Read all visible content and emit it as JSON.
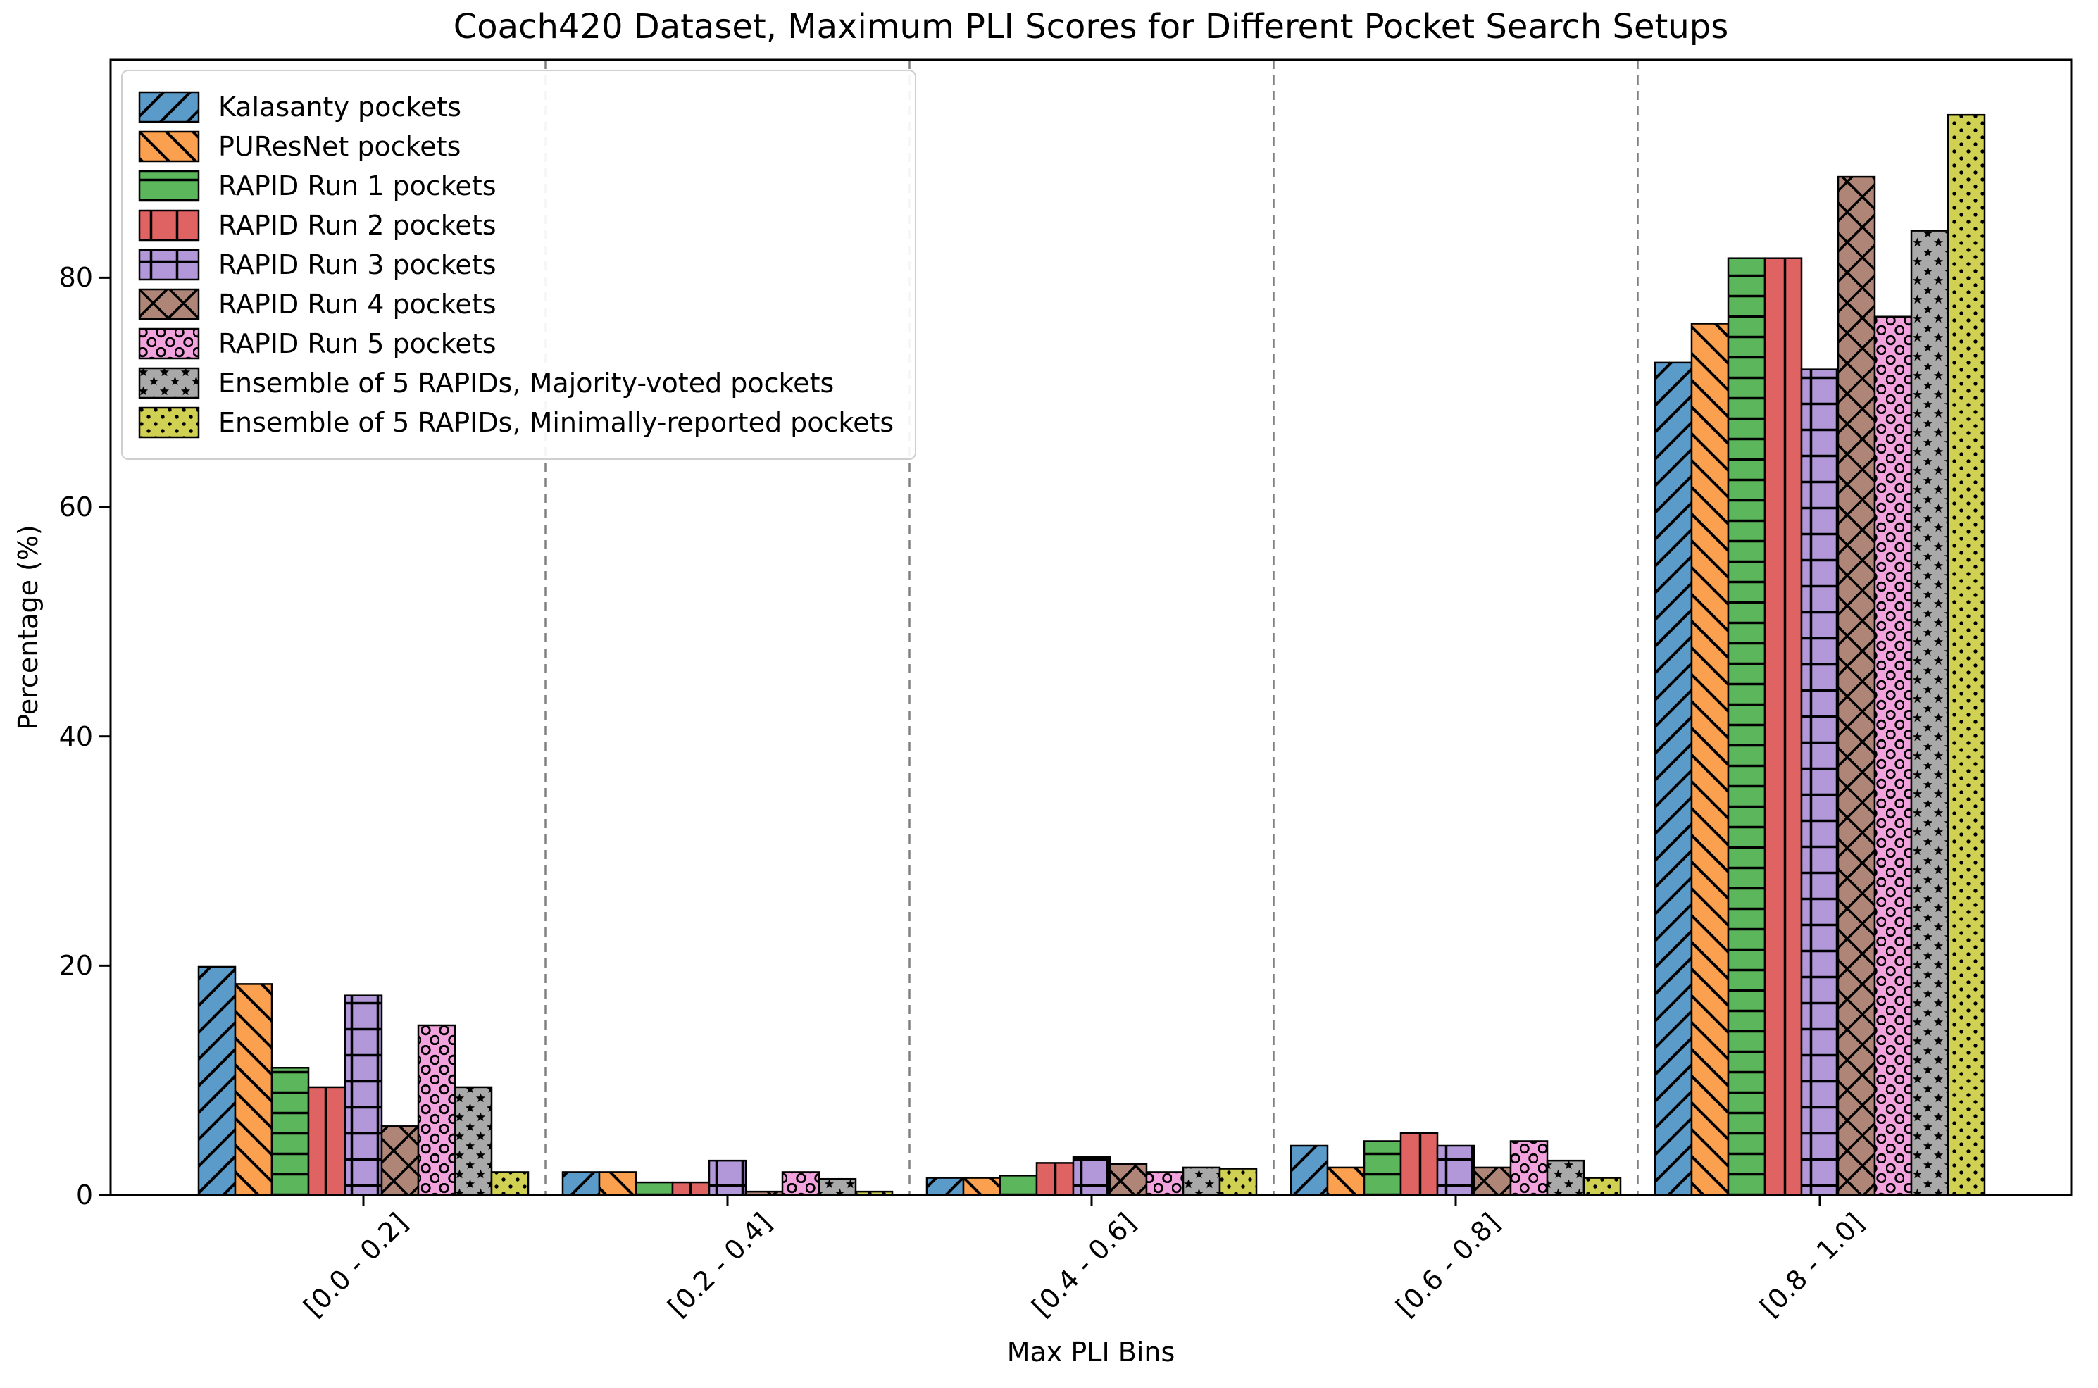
{
  "title": "Coach420 Dataset, Maximum PLI Scores for Different Pocket Search Setups",
  "chart_data": {
    "type": "bar",
    "title": "Coach420 Dataset, Maximum PLI Scores for Different Pocket Search Setups",
    "xlabel": "Max PLI Bins",
    "ylabel": "Percentage (%)",
    "ylim": [
      0,
      99
    ],
    "yticks": [
      "0",
      "20",
      "40",
      "60",
      "80"
    ],
    "ytick_values": [
      0,
      20,
      40,
      60,
      80
    ],
    "categories": [
      "[0.0 - 0.2]",
      "[0.2 - 0.4]",
      "[0.4 - 0.6]",
      "[0.6 - 0.8]",
      "[0.8 - 1.0]"
    ],
    "grid": "dashed vertical separator lines between category groups",
    "legend_position": "upper left",
    "separator_color": "#808080",
    "axis_color": "#000000",
    "series": [
      {
        "name": "Kalasanty pockets",
        "color": "#5B9BC9",
        "hatch": "/",
        "values": [
          19.9,
          2.0,
          1.5,
          4.3,
          72.6
        ]
      },
      {
        "name": "PUResNet pockets",
        "color": "#FBA04E",
        "hatch": "\\",
        "values": [
          18.4,
          2.0,
          1.5,
          2.4,
          76.0
        ]
      },
      {
        "name": "RAPID Run 1 pockets",
        "color": "#5CB75C",
        "hatch": "-",
        "values": [
          11.1,
          1.1,
          1.7,
          4.7,
          81.7
        ]
      },
      {
        "name": "RAPID Run 2 pockets",
        "color": "#E06363",
        "hatch": "|",
        "values": [
          9.4,
          1.1,
          2.8,
          5.4,
          81.7
        ]
      },
      {
        "name": "RAPID Run 3 pockets",
        "color": "#B298D8",
        "hatch": "+",
        "values": [
          17.4,
          3.0,
          3.3,
          4.3,
          72.0
        ]
      },
      {
        "name": "RAPID Run 4 pockets",
        "color": "#AE8577",
        "hatch": "x",
        "values": [
          6.0,
          0.3,
          2.7,
          2.4,
          88.8
        ]
      },
      {
        "name": "RAPID Run 5 pockets",
        "color": "#F2A2DC",
        "hatch": "o",
        "values": [
          14.8,
          2.0,
          2.0,
          4.7,
          76.6
        ]
      },
      {
        "name": "Ensemble of 5 RAPIDs, Majority-voted pockets",
        "color": "#A9A9A9",
        "hatch": "*",
        "values": [
          9.4,
          1.4,
          2.4,
          3.0,
          84.1
        ]
      },
      {
        "name": "Ensemble of 5 RAPIDs, Minimally-reported pockets",
        "color": "#D0D152",
        "hatch": ".",
        "values": [
          2.0,
          0.3,
          2.3,
          1.5,
          94.2
        ]
      }
    ]
  }
}
